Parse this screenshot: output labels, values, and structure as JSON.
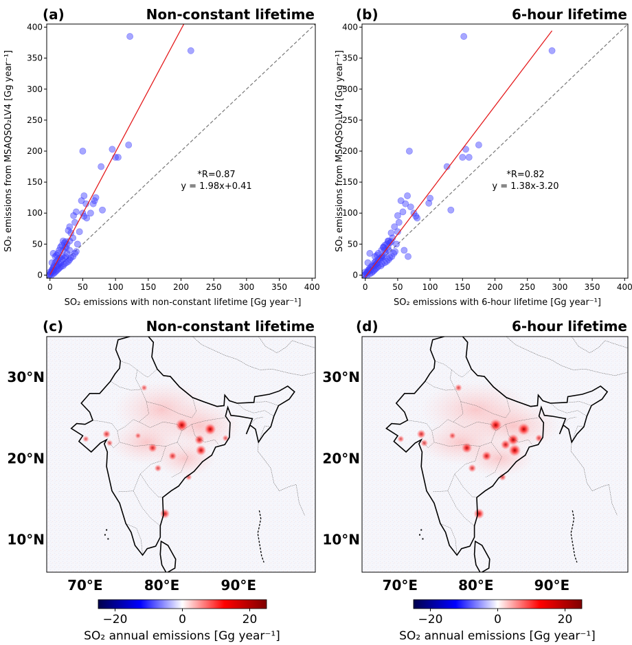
{
  "chart_data": [
    {
      "type": "scatter",
      "panel_label": "(a)",
      "title": "Non-constant lifetime",
      "xlabel": "SO₂ emissions with non-constant lifetime [Gg year⁻¹]",
      "ylabel": "SO₂ emissions from MSAQSO₂LV4 [Gg year⁻¹]",
      "xlim": [
        -5,
        405
      ],
      "ylim": [
        -5,
        405
      ],
      "xticks": [
        0,
        50,
        100,
        150,
        200,
        250,
        300,
        350,
        400
      ],
      "yticks": [
        0,
        50,
        100,
        150,
        200,
        250,
        300,
        350,
        400
      ],
      "annotation": [
        "*R=0.87",
        "y = 1.98x+0.41"
      ],
      "fit": {
        "slope": 1.98,
        "intercept": 0.41,
        "color": "#e41a1c"
      },
      "one_to_one": true,
      "point_color": "#3b3bff",
      "points": [
        [
          122,
          385
        ],
        [
          215,
          362
        ],
        [
          50,
          200
        ],
        [
          95,
          203
        ],
        [
          100,
          190
        ],
        [
          104,
          190
        ],
        [
          120,
          210
        ],
        [
          78,
          175
        ],
        [
          52,
          128
        ],
        [
          48,
          120
        ],
        [
          55,
          115
        ],
        [
          62,
          100
        ],
        [
          50,
          100
        ],
        [
          52,
          95
        ],
        [
          56,
          92
        ],
        [
          80,
          105
        ],
        [
          68,
          120
        ],
        [
          66,
          115
        ],
        [
          70,
          125
        ],
        [
          40,
          102
        ],
        [
          36,
          96
        ],
        [
          38,
          85
        ],
        [
          30,
          78
        ],
        [
          32,
          68
        ],
        [
          28,
          72
        ],
        [
          20,
          55
        ],
        [
          22,
          52
        ],
        [
          24,
          54
        ],
        [
          18,
          48
        ],
        [
          16,
          45
        ],
        [
          20,
          40
        ],
        [
          25,
          45
        ],
        [
          14,
          40
        ],
        [
          12,
          35
        ],
        [
          10,
          32
        ],
        [
          8,
          30
        ],
        [
          15,
          28
        ],
        [
          18,
          30
        ],
        [
          12,
          25
        ],
        [
          10,
          22
        ],
        [
          8,
          20
        ],
        [
          6,
          15
        ],
        [
          5,
          12
        ],
        [
          4,
          10
        ],
        [
          3,
          8
        ],
        [
          2,
          5
        ],
        [
          1,
          3
        ],
        [
          0,
          1
        ],
        [
          2,
          0
        ],
        [
          5,
          2
        ],
        [
          7,
          4
        ],
        [
          9,
          6
        ],
        [
          11,
          8
        ],
        [
          13,
          10
        ],
        [
          15,
          12
        ],
        [
          17,
          14
        ],
        [
          20,
          15
        ],
        [
          22,
          18
        ],
        [
          25,
          20
        ],
        [
          28,
          22
        ],
        [
          30,
          25
        ],
        [
          32,
          28
        ],
        [
          35,
          30
        ],
        [
          38,
          35
        ],
        [
          40,
          38
        ],
        [
          30,
          40
        ],
        [
          26,
          35
        ],
        [
          24,
          30
        ],
        [
          22,
          28
        ],
        [
          19,
          25
        ],
        [
          16,
          20
        ],
        [
          14,
          18
        ],
        [
          12,
          16
        ],
        [
          10,
          14
        ],
        [
          6,
          8
        ],
        [
          4,
          6
        ],
        [
          3,
          20
        ],
        [
          5,
          35
        ],
        [
          42,
          50
        ],
        [
          35,
          60
        ],
        [
          45,
          70
        ],
        [
          26,
          50
        ],
        [
          30,
          55
        ],
        [
          23,
          45
        ],
        [
          -1,
          0
        ],
        [
          0,
          5
        ]
      ]
    },
    {
      "type": "scatter",
      "panel_label": "(b)",
      "title": "6-hour lifetime",
      "xlabel": "SO₂ emissions with 6-hour lifetime [Gg year⁻¹]",
      "ylabel": "SO₂ emissions from MSAQSO₂LV4 [Gg year⁻¹]",
      "xlim": [
        -5,
        405
      ],
      "ylim": [
        -5,
        405
      ],
      "xticks": [
        0,
        50,
        100,
        150,
        200,
        250,
        300,
        350,
        400
      ],
      "yticks": [
        0,
        50,
        100,
        150,
        200,
        250,
        300,
        350,
        400
      ],
      "annotation": [
        "*R=0.82",
        "y = 1.38x-3.20"
      ],
      "fit": {
        "slope": 1.38,
        "intercept": -3.2,
        "color": "#e41a1c"
      },
      "one_to_one": true,
      "point_color": "#3b3bff",
      "points": [
        [
          152,
          385
        ],
        [
          288,
          362
        ],
        [
          68,
          200
        ],
        [
          155,
          203
        ],
        [
          160,
          190
        ],
        [
          150,
          190
        ],
        [
          175,
          210
        ],
        [
          126,
          175
        ],
        [
          65,
          128
        ],
        [
          55,
          120
        ],
        [
          62,
          115
        ],
        [
          70,
          110
        ],
        [
          75,
          100
        ],
        [
          78,
          95
        ],
        [
          80,
          92
        ],
        [
          132,
          105
        ],
        [
          100,
          124
        ],
        [
          98,
          116
        ],
        [
          58,
          102
        ],
        [
          50,
          96
        ],
        [
          52,
          85
        ],
        [
          45,
          78
        ],
        [
          40,
          68
        ],
        [
          60,
          40
        ],
        [
          66,
          30
        ],
        [
          35,
          55
        ],
        [
          38,
          52
        ],
        [
          40,
          54
        ],
        [
          30,
          48
        ],
        [
          28,
          45
        ],
        [
          30,
          40
        ],
        [
          35,
          45
        ],
        [
          25,
          40
        ],
        [
          20,
          35
        ],
        [
          18,
          32
        ],
        [
          15,
          30
        ],
        [
          24,
          28
        ],
        [
          26,
          30
        ],
        [
          20,
          25
        ],
        [
          16,
          22
        ],
        [
          14,
          20
        ],
        [
          10,
          15
        ],
        [
          8,
          12
        ],
        [
          6,
          10
        ],
        [
          5,
          8
        ],
        [
          3,
          5
        ],
        [
          2,
          3
        ],
        [
          0,
          1
        ],
        [
          3,
          0
        ],
        [
          7,
          2
        ],
        [
          10,
          4
        ],
        [
          12,
          6
        ],
        [
          14,
          8
        ],
        [
          16,
          10
        ],
        [
          18,
          12
        ],
        [
          20,
          14
        ],
        [
          24,
          15
        ],
        [
          26,
          18
        ],
        [
          30,
          20
        ],
        [
          33,
          22
        ],
        [
          36,
          25
        ],
        [
          38,
          28
        ],
        [
          41,
          30
        ],
        [
          44,
          35
        ],
        [
          46,
          38
        ],
        [
          36,
          40
        ],
        [
          32,
          35
        ],
        [
          28,
          30
        ],
        [
          26,
          28
        ],
        [
          22,
          25
        ],
        [
          19,
          20
        ],
        [
          17,
          18
        ],
        [
          15,
          16
        ],
        [
          12,
          14
        ],
        [
          8,
          8
        ],
        [
          5,
          6
        ],
        [
          4,
          20
        ],
        [
          7,
          35
        ],
        [
          48,
          50
        ],
        [
          42,
          60
        ],
        [
          50,
          70
        ],
        [
          33,
          50
        ],
        [
          36,
          55
        ],
        [
          28,
          45
        ],
        [
          -1,
          0
        ],
        [
          0,
          5
        ]
      ]
    },
    {
      "type": "heatmap",
      "panel_label": "(c)",
      "title": "Non-constant lifetime",
      "lon_ticks": [
        "70°E",
        "80°E",
        "90°E"
      ],
      "lat_ticks": [
        "30°N",
        "20°N",
        "10°N"
      ],
      "lon_range": [
        65,
        100
      ],
      "lat_range": [
        6,
        35
      ],
      "colorbar": {
        "ticks": [
          "−20",
          "0",
          "20"
        ],
        "range": [
          -25,
          25
        ],
        "label": "SO₂ annual emissions [Gg year⁻¹]",
        "colormap": "seismic"
      },
      "hotspots": [
        [
          82.6,
          24.1,
          1.0
        ],
        [
          86.3,
          23.6,
          0.9
        ],
        [
          85.1,
          21.0,
          0.8
        ],
        [
          84.9,
          22.3,
          0.7
        ],
        [
          78.8,
          21.3,
          0.6
        ],
        [
          81.4,
          20.3,
          0.5
        ],
        [
          80.4,
          13.2,
          0.7
        ],
        [
          72.8,
          23.0,
          0.5
        ],
        [
          73.2,
          21.9,
          0.3
        ],
        [
          79.5,
          18.8,
          0.4
        ],
        [
          77.7,
          28.7,
          0.3
        ],
        [
          88.3,
          22.5,
          0.3
        ],
        [
          83.5,
          17.7,
          0.3
        ],
        [
          76.9,
          22.8,
          0.25
        ],
        [
          70.1,
          22.4,
          0.3
        ]
      ]
    },
    {
      "type": "heatmap",
      "panel_label": "(d)",
      "title": "6-hour lifetime",
      "lon_ticks": [
        "70°E",
        "80°E",
        "90°E"
      ],
      "lat_ticks": [
        "30°N",
        "20°N",
        "10°N"
      ],
      "lon_range": [
        65,
        100
      ],
      "lat_range": [
        6,
        35
      ],
      "colorbar": {
        "ticks": [
          "−20",
          "0",
          "20"
        ],
        "range": [
          -25,
          25
        ],
        "label": "SO₂ annual emissions [Gg year⁻¹]",
        "colormap": "seismic"
      },
      "hotspots": [
        [
          82.6,
          24.1,
          1.0
        ],
        [
          86.3,
          23.6,
          1.0
        ],
        [
          85.1,
          21.0,
          1.0
        ],
        [
          84.9,
          22.3,
          0.9
        ],
        [
          78.8,
          21.3,
          0.8
        ],
        [
          81.4,
          20.3,
          0.7
        ],
        [
          80.4,
          13.2,
          0.8
        ],
        [
          72.8,
          23.0,
          0.6
        ],
        [
          73.2,
          21.9,
          0.4
        ],
        [
          79.5,
          18.8,
          0.5
        ],
        [
          77.7,
          28.7,
          0.4
        ],
        [
          88.3,
          22.5,
          0.45
        ],
        [
          83.5,
          17.7,
          0.4
        ],
        [
          76.9,
          22.8,
          0.35
        ],
        [
          70.1,
          22.4,
          0.35
        ],
        [
          83.9,
          21.7,
          0.7
        ]
      ]
    }
  ]
}
